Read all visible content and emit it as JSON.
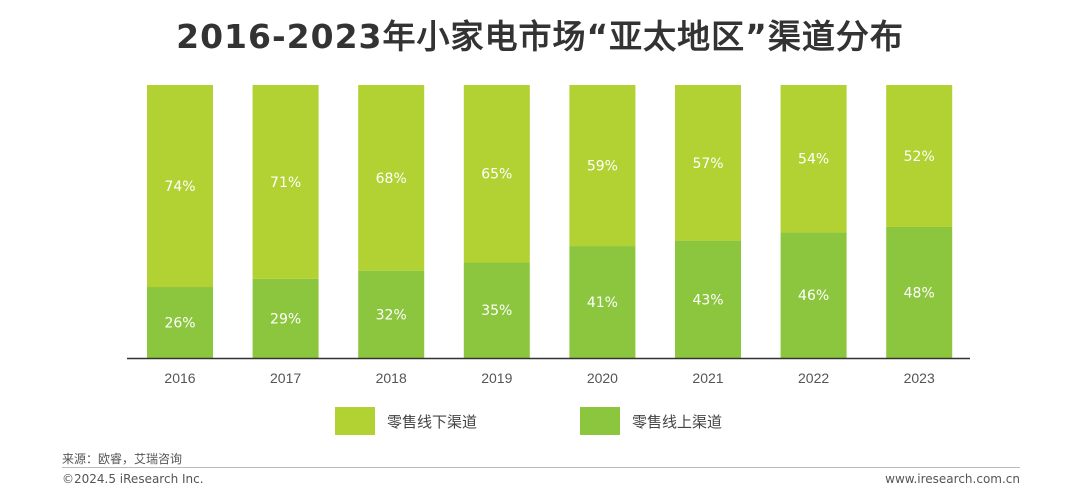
{
  "chart_data": {
    "type": "bar",
    "stacked": true,
    "title": "2016-2023年小家电市场“亚太地区”渠道分布",
    "categories": [
      "2016",
      "2017",
      "2018",
      "2019",
      "2020",
      "2021",
      "2022",
      "2023"
    ],
    "series": [
      {
        "name": "零售线上渠道",
        "values": [
          26,
          29,
          32,
          35,
          41,
          43,
          46,
          48
        ],
        "color": "#8cc63f"
      },
      {
        "name": "零售线下渠道",
        "values": [
          74,
          71,
          68,
          65,
          59,
          57,
          54,
          52
        ],
        "color": "#b1d232"
      }
    ],
    "value_suffix": "%",
    "ylim": [
      0,
      100
    ],
    "grid": false,
    "legend_position": "bottom"
  },
  "legend": [
    {
      "label": "零售线下渠道",
      "color": "#b1d232"
    },
    {
      "label": "零售线上渠道",
      "color": "#8cc63f"
    }
  ],
  "footer": {
    "source": "来源：欧睿，艾瑞咨询",
    "copyright": "©2024.5 iResearch Inc.",
    "website": "www.iresearch.com.cn"
  }
}
